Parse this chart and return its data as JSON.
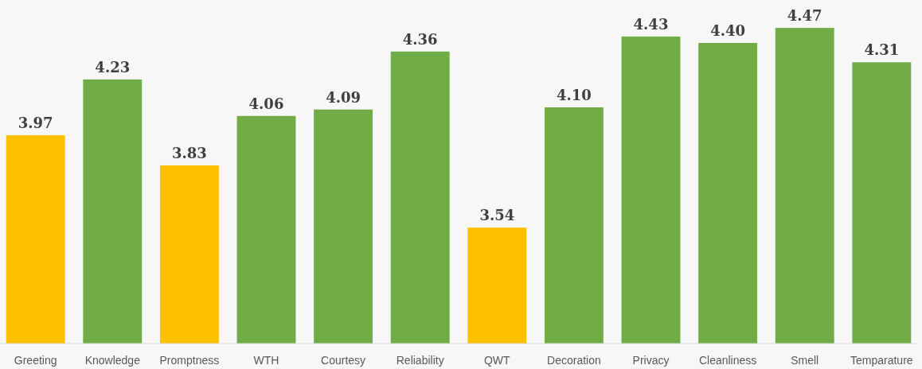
{
  "chart_data": {
    "type": "bar",
    "categories": [
      "Greeting",
      "Knowledge",
      "Promptness",
      "WTH",
      "Courtesy",
      "Reliability",
      "QWT",
      "Decoration",
      "Privacy",
      "Cleanliness",
      "Smell",
      "Temparature"
    ],
    "values": [
      3.97,
      4.23,
      3.83,
      4.06,
      4.09,
      4.36,
      3.54,
      4.1,
      4.43,
      4.4,
      4.47,
      4.31
    ],
    "value_labels": [
      "3.97",
      "4.23",
      "3.83",
      "4.06",
      "4.09",
      "4.36",
      "3.54",
      "4.10",
      "4.43",
      "4.40",
      "4.47",
      "4.31"
    ],
    "colors": [
      "#ffc000",
      "#70ad47",
      "#ffc000",
      "#70ad47",
      "#70ad47",
      "#70ad47",
      "#ffc000",
      "#70ad47",
      "#70ad47",
      "#70ad47",
      "#70ad47",
      "#70ad47"
    ],
    "ylim": [
      3,
      4.6
    ],
    "tick_labels": "x"
  }
}
